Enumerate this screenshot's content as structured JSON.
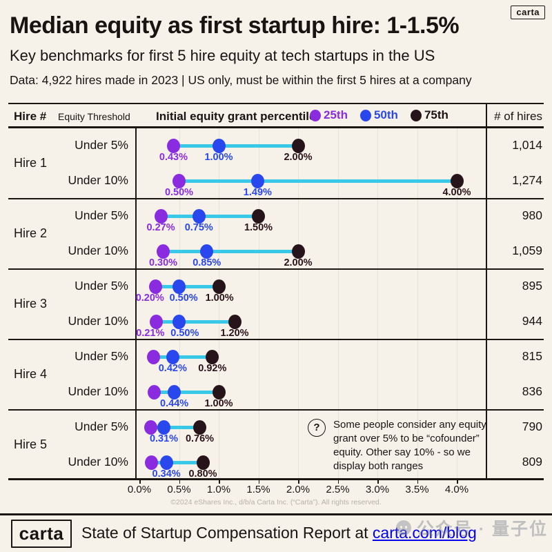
{
  "badge": "carta",
  "header": {
    "title": "Median equity as first startup hire: 1-1.5%",
    "subtitle": "Key benchmarks for first 5 hire equity at tech startups in the US",
    "data_note": "Data: 4,922 hires made in 2023 | US only, must be within the first 5 hires at a company"
  },
  "theme": {
    "background": "#f6f2ea",
    "text": "#191411",
    "purple_25th": "#8a2be0",
    "blue_50th": "#2947ec",
    "dark_75th": "#27141a",
    "connector_cyan": "#3ac8e8",
    "gridline": "#e7e2d8",
    "link_blue": "#2443e0"
  },
  "table": {
    "col_hire": "Hire #",
    "col_threshold": "Equity Threshold",
    "col_hires": "# of hires",
    "legend_title": "Initial equity grant percentile:",
    "legend": [
      {
        "label": "25th",
        "color": "#8a2be0"
      },
      {
        "label": "50th",
        "color": "#2947ec"
      },
      {
        "label": "75th",
        "color": "#27141a"
      }
    ]
  },
  "chart_data": {
    "type": "dumbbell",
    "unit": "percent equity",
    "xlim": [
      0,
      4.4
    ],
    "x_ticks": [
      "0.0%",
      "0.5%",
      "1.0%",
      "1.5%",
      "2.0%",
      "2.5%",
      "3.0%",
      "3.5%",
      "4.0%"
    ],
    "x_tick_values": [
      0,
      0.5,
      1.0,
      1.5,
      2.0,
      2.5,
      3.0,
      3.5,
      4.0
    ],
    "grid": true,
    "legend_position": "top",
    "rows": [
      {
        "hire": "Hire 1",
        "series": [
          {
            "threshold": "Under 5%",
            "p25": 0.43,
            "p50": 1.0,
            "p75": 2.0,
            "labels": [
              "0.43%",
              "1.00%",
              "2.00%"
            ],
            "hires": "1,014"
          },
          {
            "threshold": "Under 10%",
            "p25": 0.5,
            "p50": 1.49,
            "p75": 4.0,
            "labels": [
              "0.50%",
              "1.49%",
              "4.00%"
            ],
            "hires": "1,274"
          }
        ]
      },
      {
        "hire": "Hire 2",
        "series": [
          {
            "threshold": "Under 5%",
            "p25": 0.27,
            "p50": 0.75,
            "p75": 1.5,
            "labels": [
              "0.27%",
              "0.75%",
              "1.50%"
            ],
            "hires": "980"
          },
          {
            "threshold": "Under 10%",
            "p25": 0.3,
            "p50": 0.85,
            "p75": 2.0,
            "labels": [
              "0.30%",
              "0.85%",
              "2.00%"
            ],
            "hires": "1,059"
          }
        ]
      },
      {
        "hire": "Hire 3",
        "series": [
          {
            "threshold": "Under 5%",
            "p25": 0.2,
            "p50": 0.5,
            "p75": 1.0,
            "labels": [
              "0.20%",
              "0.50%",
              "1.00%"
            ],
            "hires": "895"
          },
          {
            "threshold": "Under 10%",
            "p25": 0.21,
            "p50": 0.5,
            "p75": 1.2,
            "labels": [
              "0.21%",
              "0.50%",
              "1.20%"
            ],
            "hires": "944"
          }
        ]
      },
      {
        "hire": "Hire 4",
        "series": [
          {
            "threshold": "Under 5%",
            "p25": 0.18,
            "p50": 0.42,
            "p75": 0.92,
            "labels": [
              "",
              "0.42%",
              "0.92%"
            ],
            "hires": "815"
          },
          {
            "threshold": "Under 10%",
            "p25": 0.19,
            "p50": 0.44,
            "p75": 1.0,
            "labels": [
              "",
              "0.44%",
              "1.00%"
            ],
            "hires": "836"
          }
        ]
      },
      {
        "hire": "Hire 5",
        "series": [
          {
            "threshold": "Under 5%",
            "p25": 0.14,
            "p50": 0.31,
            "p75": 0.76,
            "labels": [
              "",
              "0.31%",
              "0.76%"
            ],
            "hires": "790"
          },
          {
            "threshold": "Under 10%",
            "p25": 0.15,
            "p50": 0.34,
            "p75": 0.8,
            "labels": [
              "",
              "0.34%",
              "0.80%"
            ],
            "hires": "809"
          }
        ]
      }
    ]
  },
  "note": {
    "icon": "?",
    "text": "Some people consider any equity grant over 5% to be “cofounder” equity. Other say 10% - so we display both ranges"
  },
  "copyright": "©2024 eShares Inc., d/b/a Carta Inc. (“Carta”). All rights reserved.",
  "footer": {
    "logo": "carta",
    "text_prefix": "State of Startup Compensation Report at ",
    "link_label": "carta.com/blog"
  },
  "watermark": {
    "text": "公众号 · 量子位"
  }
}
